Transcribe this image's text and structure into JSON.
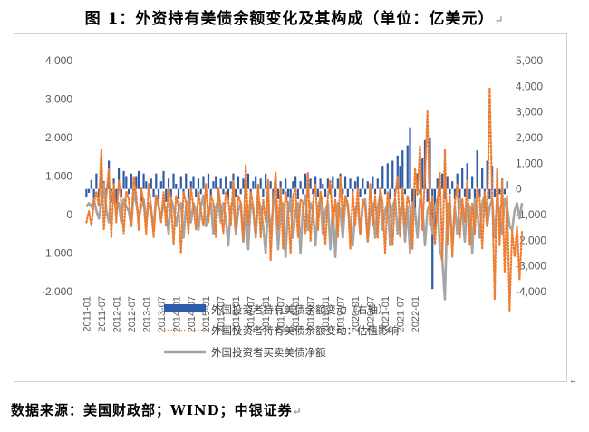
{
  "title": "图 1：外资持有美债余额变化及其构成（单位：亿美元）",
  "source": "数据来源：美国财政部；WIND；中银证券",
  "chart_data": {
    "type": "bar+line",
    "left_axis": {
      "ticks": [
        "4,000",
        "3,000",
        "2,000",
        "1,000",
        "0",
        "-1,000",
        "-2,000"
      ],
      "ylim": [
        -2000,
        4000
      ]
    },
    "right_axis": {
      "ticks": [
        "5,000",
        "4,000",
        "3,000",
        "2,000",
        "1,000",
        "0",
        "-1,000",
        "-2,000",
        "-3,000",
        "-4,000"
      ],
      "ylim": [
        -4000,
        5000
      ]
    },
    "x_ticks": [
      "2011-01",
      "2011-07",
      "2012-01",
      "2012-07",
      "2013-01",
      "2013-07",
      "2014-01",
      "2014-07",
      "2015-01",
      "2015-07",
      "2016-01",
      "2016-07",
      "2017-01",
      "2017-07",
      "2018-01",
      "2018-07",
      "2019-01",
      "2019-07",
      "2020-01",
      "2020-07",
      "2021-01",
      "2021-07",
      "2022-01"
    ],
    "x_start": "2011-01",
    "series": [
      {
        "name": "外国投资者持有美债余额变动（右轴）",
        "type": "bar",
        "axis": "right",
        "color": "#2e5ca8",
        "values": [
          -300,
          -150,
          350,
          -700,
          600,
          -300,
          1200,
          300,
          -200,
          1100,
          -500,
          400,
          -600,
          800,
          -300,
          700,
          500,
          -200,
          600,
          -400,
          500,
          700,
          -500,
          600,
          300,
          -200,
          400,
          -300,
          600,
          -400,
          300,
          700,
          -500,
          400,
          -300,
          600,
          200,
          -400,
          500,
          -200,
          600,
          -400,
          300,
          500,
          -300,
          400,
          -200,
          500,
          -300,
          600,
          -400,
          300,
          500,
          -300,
          400,
          -200,
          500,
          -400,
          300,
          600,
          -300,
          500,
          -200,
          400,
          -300,
          600,
          -400,
          300,
          500,
          -200,
          400,
          -300,
          600,
          -500,
          300,
          -800,
          500,
          -400,
          300,
          -200,
          400,
          -300,
          -900,
          300,
          500,
          -400,
          300,
          -200,
          600,
          -300,
          400,
          -200,
          500,
          -300,
          400,
          200,
          -300,
          400,
          -200,
          500,
          -300,
          400,
          600,
          -200,
          500,
          -300,
          400,
          -200,
          300,
          500,
          -300,
          400,
          -200,
          300,
          -400,
          500,
          -200,
          400,
          -300,
          900,
          -200,
          1000,
          -400,
          1100,
          -300,
          1300,
          900,
          1500,
          -200,
          1700,
          2400,
          -500,
          -800,
          600,
          -200,
          1200,
          1900,
          -500,
          2000,
          -3900,
          -1500,
          400,
          -300,
          600,
          -400,
          500,
          -200,
          300,
          -400,
          600,
          -500,
          800,
          -300,
          1000,
          -400,
          500,
          -600,
          1500,
          -300,
          800,
          -700,
          1100,
          -400,
          900,
          -300,
          700,
          -200,
          400,
          -200,
          300
        ]
      },
      {
        "name": "外国投资者持有美债余额变动：估值影响",
        "type": "line",
        "axis": "left",
        "style": "dotted",
        "color": "#ed7d31",
        "values": [
          -200,
          100,
          -300,
          300,
          600,
          200,
          1700,
          -400,
          500,
          1200,
          -600,
          800,
          -200,
          900,
          300,
          -500,
          600,
          400,
          -300,
          1000,
          500,
          -400,
          700,
          300,
          -500,
          800,
          200,
          -600,
          500,
          300,
          -200,
          600,
          -300,
          700,
          400,
          -800,
          500,
          200,
          -1000,
          600,
          300,
          -500,
          700,
          200,
          -400,
          600,
          100,
          -300,
          800,
          -200,
          500,
          300,
          -600,
          700,
          200,
          -500,
          600,
          400,
          -300,
          900,
          -400,
          500,
          300,
          -700,
          1300,
          -300,
          600,
          200,
          -500,
          800,
          -600,
          400,
          -200,
          900,
          -1200,
          300,
          1100,
          -400,
          700,
          -900,
          600,
          200,
          -1000,
          500,
          700,
          -600,
          400,
          300,
          -500,
          1100,
          -700,
          300,
          800,
          -400,
          600,
          200,
          -800,
          500,
          900,
          -300,
          400,
          -600,
          1000,
          -200,
          500,
          300,
          -900,
          600,
          -300,
          700,
          -500,
          400,
          200,
          -700,
          800,
          -300,
          500,
          -600,
          700,
          300,
          -1000,
          600,
          200,
          -800,
          500,
          1000,
          -600,
          700,
          -300,
          500,
          200,
          -900,
          1200,
          500,
          1800,
          -400,
          1000,
          2700,
          -300,
          500,
          -800,
          300,
          1100,
          -1200,
          1700,
          -800,
          500,
          -1100,
          300,
          800,
          -600,
          400,
          -200,
          900,
          -800,
          300,
          -500,
          700,
          400,
          -900,
          600,
          -300,
          3300,
          500,
          -2200,
          1200,
          -800,
          900,
          -1500,
          500,
          -2500,
          -400,
          -1100,
          -300,
          -1700,
          -400
        ]
      },
      {
        "name": "外国投资者买卖美债净额",
        "type": "line",
        "axis": "left",
        "style": "solid",
        "color": "#a5a5a5",
        "values": [
          200,
          300,
          200,
          400,
          100,
          -100,
          300,
          800,
          100,
          -200,
          600,
          500,
          100,
          300,
          -200,
          400,
          200,
          100,
          -300,
          600,
          300,
          -100,
          200,
          400,
          -200,
          300,
          100,
          -400,
          500,
          200,
          -100,
          300,
          100,
          -500,
          400,
          200,
          -300,
          100,
          300,
          -600,
          200,
          400,
          -200,
          300,
          100,
          -400,
          200,
          500,
          -300,
          100,
          300,
          -500,
          200,
          400,
          -200,
          300,
          -100,
          -800,
          200,
          400,
          -500,
          100,
          300,
          -700,
          200,
          -900,
          300,
          100,
          -600,
          400,
          200,
          -300,
          -1000,
          300,
          -500,
          200,
          400,
          -900,
          100,
          300,
          -1100,
          200,
          400,
          -600,
          100,
          300,
          -1000,
          200,
          500,
          -400,
          300,
          100,
          -800,
          200,
          400,
          -500,
          100,
          300,
          -900,
          200,
          -1100,
          300,
          100,
          -600,
          400,
          200,
          -300,
          -800,
          100,
          300,
          -500,
          200,
          400,
          -700,
          100,
          300,
          -600,
          200,
          500,
          -400,
          100,
          300,
          -800,
          200,
          400,
          -500,
          100,
          300,
          -700,
          200,
          -1000,
          300,
          100,
          -600,
          400,
          200,
          -800,
          100,
          300,
          -500,
          200,
          400,
          -900,
          -1200,
          -2200,
          300,
          100,
          -800,
          200,
          -500,
          400,
          100,
          -700,
          300,
          200,
          -1000,
          400,
          100,
          -600,
          300,
          500,
          -300,
          200,
          400,
          -600,
          300,
          100,
          -500,
          400,
          200,
          -300,
          -400,
          100,
          300,
          -100,
          300
        ]
      }
    ]
  }
}
